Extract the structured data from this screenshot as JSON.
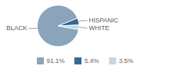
{
  "chart_data": {
    "type": "pie",
    "categories": [
      "BLACK",
      "HISPANIC",
      "WHITE"
    ],
    "values": [
      91.1,
      5.4,
      3.5
    ],
    "value_labels": [
      "91.1%",
      "5.4%",
      "3.5%"
    ],
    "colors": [
      "#8aa4bd",
      "#3b6791",
      "#c5d6e4"
    ],
    "legend": "bottom"
  }
}
